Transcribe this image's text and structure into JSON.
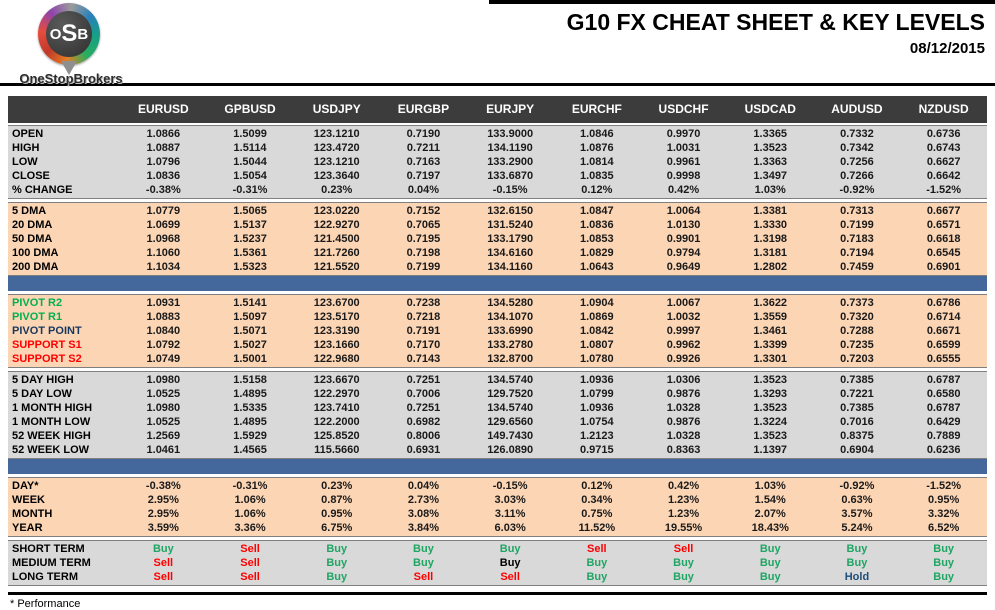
{
  "header": {
    "title": "G10 FX CHEAT SHEET & KEY LEVELS",
    "date": "08/12/2015",
    "logo": {
      "letter1": "O",
      "letter2": "S",
      "letter3": "B",
      "brand": "OneStopBrokers"
    }
  },
  "footnote": "* Performance",
  "colors": {
    "header_bg": "#3c3c3c",
    "section_gray": "#d9d9d9",
    "section_peach": "#fcd5b4",
    "separator_blue": "#44689b",
    "green": "#00b050",
    "red": "#ff0000",
    "navy": "#17375e",
    "buy": "#1fa564",
    "sell": "#ff0000",
    "hold": "#1f4e79",
    "black": "#000000"
  },
  "columns": [
    "EURUSD",
    "GPBUSD",
    "USDJPY",
    "EURGBP",
    "EURJPY",
    "EURCHF",
    "USDCHF",
    "USDCAD",
    "AUDUSD",
    "NZDUSD"
  ],
  "sections": [
    {
      "id": "ohlc",
      "bg": "gray",
      "bar_after": false,
      "rows": [
        {
          "label": "OPEN",
          "values": [
            "1.0866",
            "1.5099",
            "123.1210",
            "0.7190",
            "133.9000",
            "1.0846",
            "0.9970",
            "1.3365",
            "0.7332",
            "0.6736"
          ]
        },
        {
          "label": "HIGH",
          "values": [
            "1.0887",
            "1.5114",
            "123.4720",
            "0.7211",
            "134.1190",
            "1.0876",
            "1.0031",
            "1.3523",
            "0.7342",
            "0.6743"
          ]
        },
        {
          "label": "LOW",
          "values": [
            "1.0796",
            "1.5044",
            "123.1210",
            "0.7163",
            "133.2900",
            "1.0814",
            "0.9961",
            "1.3363",
            "0.7256",
            "0.6627"
          ]
        },
        {
          "label": "CLOSE",
          "values": [
            "1.0836",
            "1.5054",
            "123.3640",
            "0.7197",
            "133.6870",
            "1.0835",
            "0.9998",
            "1.3497",
            "0.7266",
            "0.6642"
          ]
        },
        {
          "label": "% CHANGE",
          "values": [
            "-0.38%",
            "-0.31%",
            "0.23%",
            "0.04%",
            "-0.15%",
            "0.12%",
            "0.42%",
            "1.03%",
            "-0.92%",
            "-1.52%"
          ]
        }
      ]
    },
    {
      "id": "dma",
      "bg": "peach",
      "bar_after": true,
      "rows": [
        {
          "label": "5 DMA",
          "values": [
            "1.0779",
            "1.5065",
            "123.0220",
            "0.7152",
            "132.6150",
            "1.0847",
            "1.0064",
            "1.3381",
            "0.7313",
            "0.6677"
          ]
        },
        {
          "label": "20 DMA",
          "values": [
            "1.0699",
            "1.5137",
            "122.9270",
            "0.7065",
            "131.5240",
            "1.0836",
            "1.0130",
            "1.3330",
            "0.7199",
            "0.6571"
          ]
        },
        {
          "label": "50 DMA",
          "values": [
            "1.0968",
            "1.5237",
            "121.4500",
            "0.7195",
            "133.1790",
            "1.0853",
            "0.9901",
            "1.3198",
            "0.7183",
            "0.6618"
          ]
        },
        {
          "label": "100 DMA",
          "values": [
            "1.1060",
            "1.5361",
            "121.7260",
            "0.7198",
            "134.6160",
            "1.0829",
            "0.9794",
            "1.3181",
            "0.7194",
            "0.6545"
          ]
        },
        {
          "label": "200 DMA",
          "values": [
            "1.1034",
            "1.5323",
            "121.5520",
            "0.7199",
            "134.1160",
            "1.0643",
            "0.9649",
            "1.2802",
            "0.7459",
            "0.6901"
          ]
        }
      ]
    },
    {
      "id": "pivots",
      "bg": "peach",
      "bar_after": false,
      "rows": [
        {
          "label": "PIVOT R2",
          "label_color": "green",
          "values": [
            "1.0931",
            "1.5141",
            "123.6700",
            "0.7238",
            "134.5280",
            "1.0904",
            "1.0067",
            "1.3622",
            "0.7373",
            "0.6786"
          ]
        },
        {
          "label": "PIVOT R1",
          "label_color": "green",
          "values": [
            "1.0883",
            "1.5097",
            "123.5170",
            "0.7218",
            "134.1070",
            "1.0869",
            "1.0032",
            "1.3559",
            "0.7320",
            "0.6714"
          ]
        },
        {
          "label": "PIVOT POINT",
          "label_color": "navy",
          "values": [
            "1.0840",
            "1.5071",
            "123.3190",
            "0.7191",
            "133.6990",
            "1.0842",
            "0.9997",
            "1.3461",
            "0.7288",
            "0.6671"
          ]
        },
        {
          "label": "SUPPORT S1",
          "label_color": "red",
          "values": [
            "1.0792",
            "1.5027",
            "123.1660",
            "0.7170",
            "133.2780",
            "1.0807",
            "0.9962",
            "1.3399",
            "0.7235",
            "0.6599"
          ]
        },
        {
          "label": "SUPPORT S2",
          "label_color": "red",
          "values": [
            "1.0749",
            "1.5001",
            "122.9680",
            "0.7143",
            "132.8700",
            "1.0780",
            "0.9926",
            "1.3301",
            "0.7203",
            "0.6555"
          ]
        }
      ]
    },
    {
      "id": "ranges",
      "bg": "gray",
      "bar_after": true,
      "rows": [
        {
          "label": "5 DAY HIGH",
          "values": [
            "1.0980",
            "1.5158",
            "123.6670",
            "0.7251",
            "134.5740",
            "1.0936",
            "1.0306",
            "1.3523",
            "0.7385",
            "0.6787"
          ]
        },
        {
          "label": "5 DAY LOW",
          "values": [
            "1.0525",
            "1.4895",
            "122.2970",
            "0.7006",
            "129.7520",
            "1.0799",
            "0.9876",
            "1.3293",
            "0.7221",
            "0.6580"
          ]
        },
        {
          "label": "1 MONTH HIGH",
          "values": [
            "1.0980",
            "1.5335",
            "123.7410",
            "0.7251",
            "134.5740",
            "1.0936",
            "1.0328",
            "1.3523",
            "0.7385",
            "0.6787"
          ]
        },
        {
          "label": "1 MONTH LOW",
          "values": [
            "1.0525",
            "1.4895",
            "122.2000",
            "0.6982",
            "129.6560",
            "1.0754",
            "0.9876",
            "1.3224",
            "0.7016",
            "0.6429"
          ]
        },
        {
          "label": "52 WEEK HIGH",
          "values": [
            "1.2569",
            "1.5929",
            "125.8520",
            "0.8006",
            "149.7430",
            "1.2123",
            "1.0328",
            "1.3523",
            "0.8375",
            "0.7889"
          ]
        },
        {
          "label": "52 WEEK LOW",
          "values": [
            "1.0461",
            "1.4565",
            "115.5660",
            "0.6931",
            "126.0890",
            "0.9715",
            "0.8363",
            "1.1397",
            "0.6904",
            "0.6236"
          ]
        }
      ]
    },
    {
      "id": "performance",
      "bg": "peach",
      "bar_after": false,
      "rows": [
        {
          "label": "DAY*",
          "values": [
            "-0.38%",
            "-0.31%",
            "0.23%",
            "0.04%",
            "-0.15%",
            "0.12%",
            "0.42%",
            "1.03%",
            "-0.92%",
            "-1.52%"
          ]
        },
        {
          "label": "WEEK",
          "values": [
            "2.95%",
            "1.06%",
            "0.87%",
            "2.73%",
            "3.03%",
            "0.34%",
            "1.23%",
            "1.54%",
            "0.63%",
            "0.95%"
          ]
        },
        {
          "label": "MONTH",
          "values": [
            "2.95%",
            "1.06%",
            "0.95%",
            "3.08%",
            "3.11%",
            "0.75%",
            "1.23%",
            "2.07%",
            "3.57%",
            "3.32%"
          ]
        },
        {
          "label": "YEAR",
          "values": [
            "3.59%",
            "3.36%",
            "6.75%",
            "3.84%",
            "6.03%",
            "11.52%",
            "19.55%",
            "18.43%",
            "5.24%",
            "6.52%"
          ]
        }
      ]
    },
    {
      "id": "signals",
      "bg": "gray",
      "bar_after": false,
      "rows": [
        {
          "label": "SHORT TERM",
          "values": [
            "Buy",
            "Sell",
            "Buy",
            "Buy",
            "Buy",
            "Sell",
            "Sell",
            "Buy",
            "Buy",
            "Buy"
          ],
          "value_colors": [
            "buy",
            "sell",
            "buy",
            "buy",
            "buy",
            "sell",
            "sell",
            "buy",
            "buy",
            "buy"
          ]
        },
        {
          "label": "MEDIUM TERM",
          "values": [
            "Sell",
            "Sell",
            "Buy",
            "Buy",
            "Buy",
            "Buy",
            "Buy",
            "Buy",
            "Buy",
            "Buy"
          ],
          "value_colors": [
            "sell",
            "sell",
            "buy",
            "buy",
            "black",
            "buy",
            "buy",
            "buy",
            "buy",
            "buy"
          ]
        },
        {
          "label": "LONG TERM",
          "values": [
            "Sell",
            "Sell",
            "Buy",
            "Sell",
            "Sell",
            "Buy",
            "Buy",
            "Buy",
            "Hold",
            "Buy"
          ],
          "value_colors": [
            "sell",
            "sell",
            "buy",
            "sell",
            "sell",
            "buy",
            "buy",
            "buy",
            "hold",
            "buy"
          ]
        }
      ]
    }
  ]
}
